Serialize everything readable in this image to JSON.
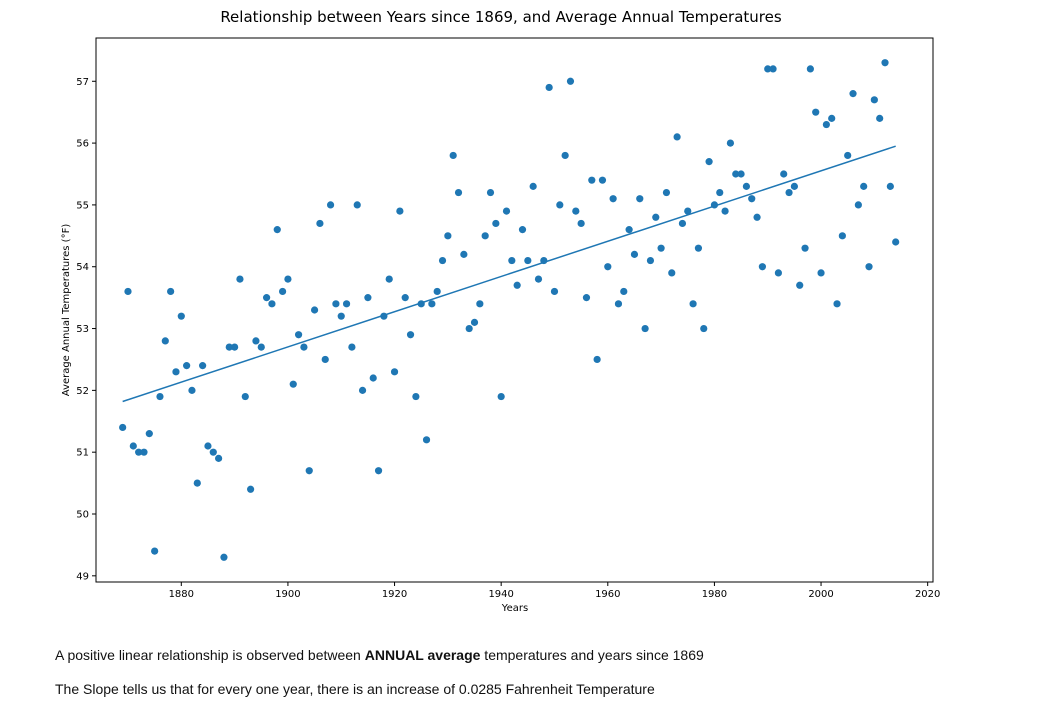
{
  "chart_data": {
    "type": "scatter",
    "title": "Relationship between Years since 1869, and Average Annual Temperatures",
    "xlabel": "Years",
    "ylabel": "Average Annual Temperatures (°F)",
    "xlim": [
      1864,
      2021
    ],
    "ylim": [
      48.9,
      57.7
    ],
    "xticks": [
      1880,
      1900,
      1920,
      1940,
      1960,
      1980,
      2000,
      2020
    ],
    "yticks": [
      49,
      50,
      51,
      52,
      53,
      54,
      55,
      56,
      57
    ],
    "grid": false,
    "point_color": "#1f77b4",
    "line_color": "#1f77b4",
    "trendline": {
      "x": [
        1869,
        2014
      ],
      "y": [
        51.82,
        55.95
      ]
    },
    "points": [
      [
        1869,
        51.4
      ],
      [
        1870,
        53.6
      ],
      [
        1871,
        51.1
      ],
      [
        1872,
        51.0
      ],
      [
        1873,
        51.0
      ],
      [
        1874,
        51.3
      ],
      [
        1875,
        49.4
      ],
      [
        1876,
        51.9
      ],
      [
        1877,
        52.8
      ],
      [
        1878,
        53.6
      ],
      [
        1879,
        52.3
      ],
      [
        1880,
        53.2
      ],
      [
        1881,
        52.4
      ],
      [
        1882,
        52.0
      ],
      [
        1883,
        50.5
      ],
      [
        1884,
        52.4
      ],
      [
        1885,
        51.1
      ],
      [
        1886,
        51.0
      ],
      [
        1887,
        50.9
      ],
      [
        1888,
        49.3
      ],
      [
        1889,
        52.7
      ],
      [
        1890,
        52.7
      ],
      [
        1891,
        53.8
      ],
      [
        1892,
        51.9
      ],
      [
        1893,
        50.4
      ],
      [
        1894,
        52.8
      ],
      [
        1895,
        52.7
      ],
      [
        1896,
        53.5
      ],
      [
        1897,
        53.4
      ],
      [
        1898,
        54.6
      ],
      [
        1899,
        53.6
      ],
      [
        1900,
        53.8
      ],
      [
        1901,
        52.1
      ],
      [
        1902,
        52.9
      ],
      [
        1903,
        52.7
      ],
      [
        1904,
        50.7
      ],
      [
        1905,
        53.3
      ],
      [
        1906,
        54.7
      ],
      [
        1907,
        52.5
      ],
      [
        1908,
        55.0
      ],
      [
        1909,
        53.4
      ],
      [
        1910,
        53.2
      ],
      [
        1911,
        53.4
      ],
      [
        1912,
        52.7
      ],
      [
        1913,
        55.0
      ],
      [
        1914,
        52.0
      ],
      [
        1915,
        53.5
      ],
      [
        1916,
        52.2
      ],
      [
        1917,
        50.7
      ],
      [
        1918,
        53.2
      ],
      [
        1919,
        53.8
      ],
      [
        1920,
        52.3
      ],
      [
        1921,
        54.9
      ],
      [
        1922,
        53.5
      ],
      [
        1923,
        52.9
      ],
      [
        1924,
        51.9
      ],
      [
        1925,
        53.4
      ],
      [
        1926,
        51.2
      ],
      [
        1927,
        53.4
      ],
      [
        1928,
        53.6
      ],
      [
        1929,
        54.1
      ],
      [
        1930,
        54.5
      ],
      [
        1931,
        55.8
      ],
      [
        1932,
        55.2
      ],
      [
        1933,
        54.2
      ],
      [
        1934,
        53.0
      ],
      [
        1935,
        53.1
      ],
      [
        1936,
        53.4
      ],
      [
        1937,
        54.5
      ],
      [
        1938,
        55.2
      ],
      [
        1939,
        54.7
      ],
      [
        1940,
        51.9
      ],
      [
        1941,
        54.9
      ],
      [
        1942,
        54.1
      ],
      [
        1943,
        53.7
      ],
      [
        1944,
        54.6
      ],
      [
        1945,
        54.1
      ],
      [
        1946,
        55.3
      ],
      [
        1947,
        53.8
      ],
      [
        1948,
        54.1
      ],
      [
        1949,
        56.9
      ],
      [
        1950,
        53.6
      ],
      [
        1951,
        55.0
      ],
      [
        1952,
        55.8
      ],
      [
        1953,
        57.0
      ],
      [
        1954,
        54.9
      ],
      [
        1955,
        54.7
      ],
      [
        1956,
        53.5
      ],
      [
        1957,
        55.4
      ],
      [
        1958,
        52.5
      ],
      [
        1959,
        55.4
      ],
      [
        1960,
        54.0
      ],
      [
        1961,
        55.1
      ],
      [
        1962,
        53.4
      ],
      [
        1963,
        53.6
      ],
      [
        1964,
        54.6
      ],
      [
        1965,
        54.2
      ],
      [
        1966,
        55.1
      ],
      [
        1967,
        53.0
      ],
      [
        1968,
        54.1
      ],
      [
        1969,
        54.8
      ],
      [
        1970,
        54.3
      ],
      [
        1971,
        55.2
      ],
      [
        1972,
        53.9
      ],
      [
        1973,
        56.1
      ],
      [
        1974,
        54.7
      ],
      [
        1975,
        54.9
      ],
      [
        1976,
        53.4
      ],
      [
        1977,
        54.3
      ],
      [
        1978,
        53.0
      ],
      [
        1979,
        55.7
      ],
      [
        1980,
        55.0
      ],
      [
        1981,
        55.2
      ],
      [
        1982,
        54.9
      ],
      [
        1983,
        56.0
      ],
      [
        1984,
        55.5
      ],
      [
        1985,
        55.5
      ],
      [
        1986,
        55.3
      ],
      [
        1987,
        55.1
      ],
      [
        1988,
        54.8
      ],
      [
        1989,
        54.0
      ],
      [
        1990,
        57.2
      ],
      [
        1991,
        57.2
      ],
      [
        1992,
        53.9
      ],
      [
        1993,
        55.5
      ],
      [
        1994,
        55.2
      ],
      [
        1995,
        55.3
      ],
      [
        1996,
        53.7
      ],
      [
        1997,
        54.3
      ],
      [
        1998,
        57.2
      ],
      [
        1999,
        56.5
      ],
      [
        2000,
        53.9
      ],
      [
        2001,
        56.3
      ],
      [
        2002,
        56.4
      ],
      [
        2003,
        53.4
      ],
      [
        2004,
        54.5
      ],
      [
        2005,
        55.8
      ],
      [
        2006,
        56.8
      ],
      [
        2007,
        55.0
      ],
      [
        2008,
        55.3
      ],
      [
        2009,
        54.0
      ],
      [
        2010,
        56.7
      ],
      [
        2011,
        56.4
      ],
      [
        2012,
        57.3
      ],
      [
        2013,
        55.3
      ],
      [
        2014,
        54.4
      ]
    ]
  },
  "captions": {
    "line1_prefix": "A positive linear relationship is observed between ",
    "line1_bold": "ANNUAL average",
    "line1_suffix": " temperatures and years since 1869",
    "line2": "The Slope tells us that for every one year, there is an increase of 0.0285 Fahrenheit Temperature"
  }
}
